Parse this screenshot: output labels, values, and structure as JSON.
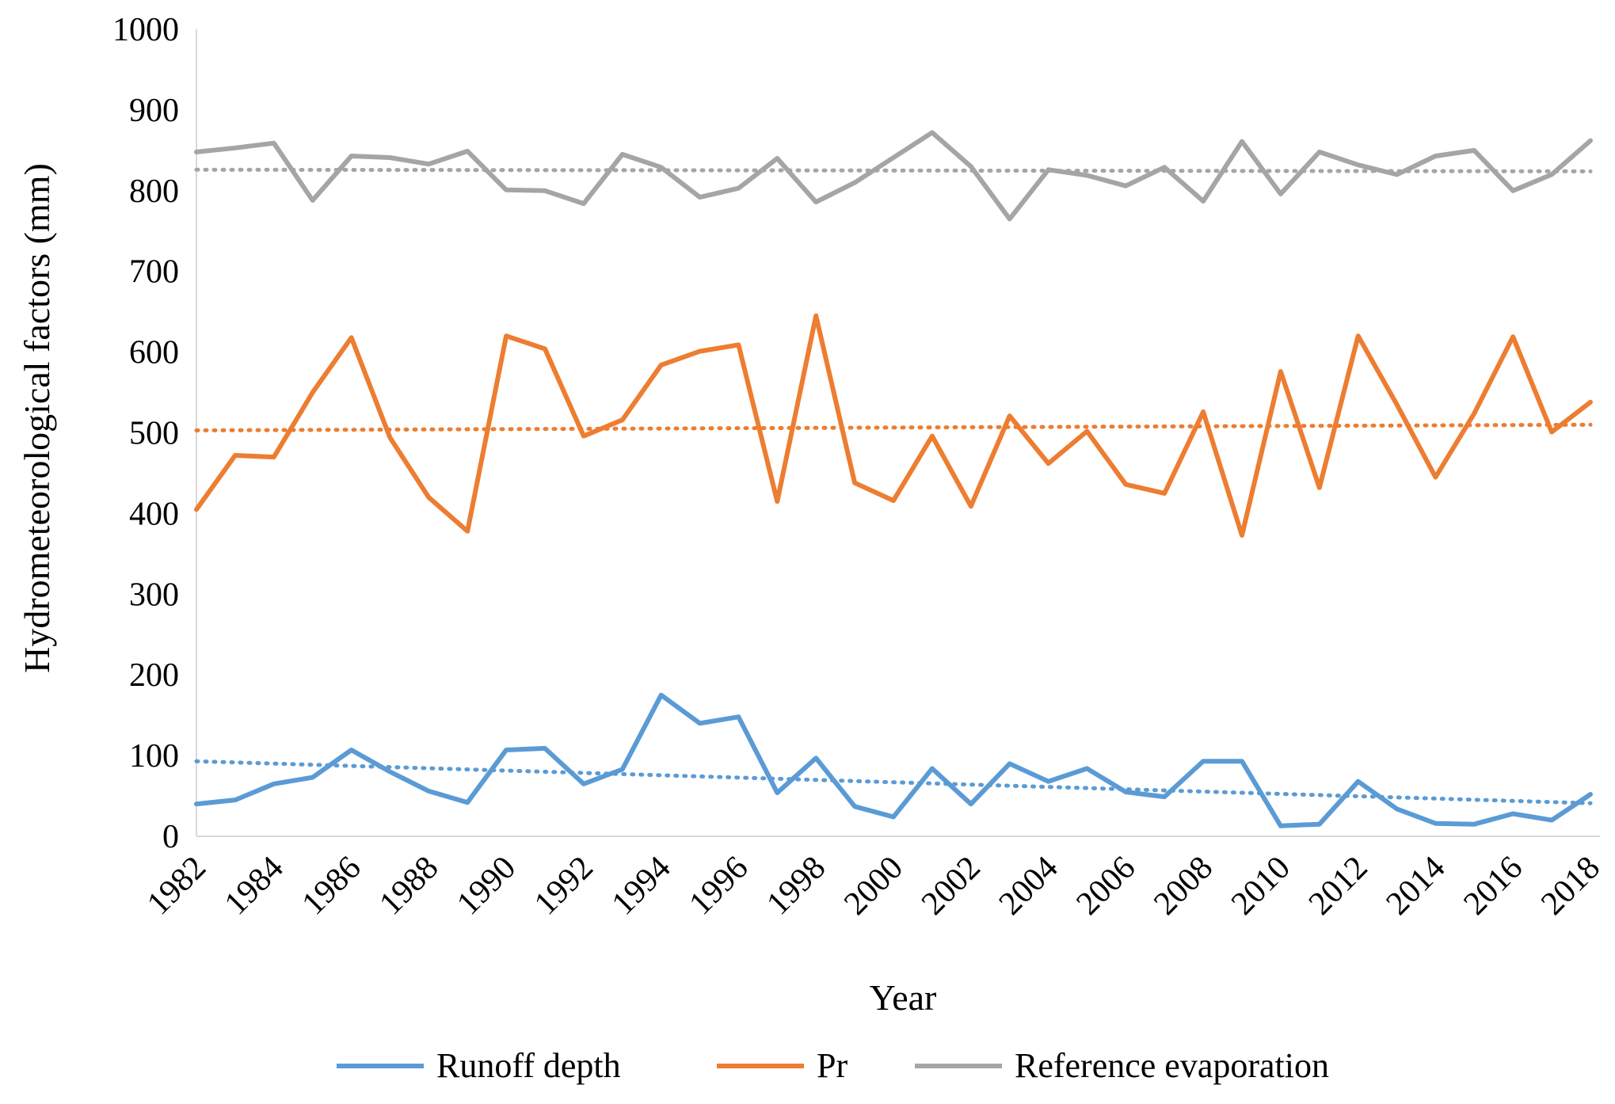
{
  "chart_data": {
    "type": "line",
    "title": "",
    "xlabel": "Year",
    "ylabel": "Hydrometeorological factors (mm)",
    "ylim": [
      0,
      1000
    ],
    "yticks": [
      "0",
      "100",
      "200",
      "300",
      "400",
      "500",
      "600",
      "700",
      "800",
      "900",
      "1000"
    ],
    "xtick_labels": [
      "1982",
      "1984",
      "1986",
      "1988",
      "1990",
      "1992",
      "1994",
      "1996",
      "1998",
      "2000",
      "2002",
      "2004",
      "2006",
      "2008",
      "2010",
      "2012",
      "2014",
      "2016",
      "2018"
    ],
    "grid": false,
    "legend_position": "bottom",
    "x": [
      1982,
      1983,
      1984,
      1985,
      1986,
      1987,
      1988,
      1989,
      1990,
      1991,
      1992,
      1993,
      1994,
      1995,
      1996,
      1997,
      1998,
      1999,
      2000,
      2001,
      2002,
      2003,
      2004,
      2005,
      2006,
      2007,
      2008,
      2009,
      2010,
      2011,
      2012,
      2013,
      2014,
      2015,
      2016,
      2017,
      2018
    ],
    "series": [
      {
        "name": "Runoff depth",
        "color": "#5b9bd5",
        "values": [
          40,
          45,
          65,
          73,
          107,
          80,
          56,
          42,
          107,
          109,
          65,
          83,
          175,
          140,
          148,
          54,
          97,
          37,
          24,
          84,
          40,
          90,
          68,
          84,
          55,
          49,
          93,
          93,
          13,
          15,
          68,
          34,
          16,
          15,
          28,
          20,
          52
        ],
        "trend": [
          93,
          41
        ]
      },
      {
        "name": "Pr",
        "color": "#ed7d31",
        "values": [
          405,
          472,
          470,
          550,
          618,
          494,
          420,
          378,
          620,
          604,
          496,
          516,
          584,
          601,
          609,
          415,
          645,
          438,
          416,
          496,
          409,
          521,
          462,
          502,
          436,
          425,
          526,
          373,
          576,
          432,
          620,
          535,
          445,
          524,
          619,
          501,
          538
        ],
        "trend": [
          503,
          510
        ]
      },
      {
        "name": "Reference evaporation",
        "color": "#a5a5a5",
        "values": [
          848,
          853,
          859,
          788,
          843,
          841,
          833,
          849,
          801,
          800,
          784,
          845,
          829,
          792,
          803,
          840,
          786,
          810,
          841,
          872,
          830,
          765,
          826,
          819,
          806,
          829,
          787,
          861,
          796,
          848,
          832,
          820,
          843,
          850,
          800,
          820,
          862
        ],
        "trend": [
          826,
          824
        ]
      }
    ]
  }
}
